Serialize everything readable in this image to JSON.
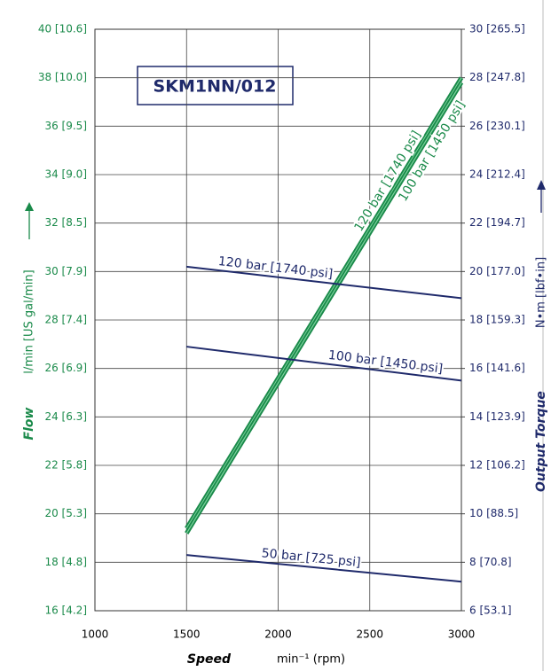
{
  "chart_data": {
    "type": "line",
    "title": "SKM1NN/012",
    "x_label": "Speed",
    "x_unit": "min⁻¹ (rpm)",
    "y_label": "Flow",
    "y_unit": "l/min   [US gal/min]",
    "y2_label": "Output Torque",
    "y2_unit": "N•m   [lbf•in]",
    "x": [
      1500,
      3000
    ],
    "xlim": [
      1000,
      3000
    ],
    "xticks": [
      1000,
      1500,
      2000,
      2500,
      3000
    ],
    "ylim": [
      16,
      40
    ],
    "yticks": [
      {
        "value": 16,
        "label": "16 [4.2]"
      },
      {
        "value": 18,
        "label": "18 [4.8]"
      },
      {
        "value": 20,
        "label": "20 [5.3]"
      },
      {
        "value": 22,
        "label": "22 [5.8]"
      },
      {
        "value": 24,
        "label": "24 [6.3]"
      },
      {
        "value": 26,
        "label": "26 [6.9]"
      },
      {
        "value": 28,
        "label": "28 [7.4]"
      },
      {
        "value": 30,
        "label": "30 [7.9]"
      },
      {
        "value": 32,
        "label": "32 [8.5]"
      },
      {
        "value": 34,
        "label": "34 [9.0]"
      },
      {
        "value": 36,
        "label": "36 [9.5]"
      },
      {
        "value": 38,
        "label": "38 [10.0]"
      },
      {
        "value": 40,
        "label": "40 [10.6]"
      }
    ],
    "y2lim": [
      6,
      30
    ],
    "y2ticks": [
      {
        "value": 6,
        "label": "6 [53.1]"
      },
      {
        "value": 8,
        "label": "8 [70.8]"
      },
      {
        "value": 10,
        "label": "10 [88.5]"
      },
      {
        "value": 12,
        "label": "12 [106.2]"
      },
      {
        "value": 14,
        "label": "14 [123.9]"
      },
      {
        "value": 16,
        "label": "16 [141.6]"
      },
      {
        "value": 18,
        "label": "18 [159.3]"
      },
      {
        "value": 20,
        "label": "20 [177.0]"
      },
      {
        "value": 22,
        "label": "22 [194.7]"
      },
      {
        "value": 24,
        "label": "24 [212.4]"
      },
      {
        "value": 26,
        "label": "26 [230.1]"
      },
      {
        "value": 28,
        "label": "28 [247.8]"
      },
      {
        "value": 30,
        "label": "30 [265.5]"
      }
    ],
    "grid": true,
    "series": [
      {
        "name": "120 bar [1740 psi]",
        "color": "#1a8a4a",
        "values": [
          19.4,
          38.0
        ]
      },
      {
        "name": "100 bar [1450 psi]",
        "color": "#1a8a4a",
        "values": [
          19.2,
          37.8
        ]
      },
      {
        "name": "120 bar [1740 psi]",
        "color": "#1f2a6b",
        "axis": "y2",
        "values": [
          20.2,
          18.9
        ]
      },
      {
        "name": "100 bar [1450 psi]",
        "color": "#1f2a6b",
        "axis": "y2",
        "values": [
          16.9,
          15.5
        ]
      },
      {
        "name": "50 bar [725 psi]",
        "color": "#1f2a6b",
        "axis": "y2",
        "values": [
          8.3,
          7.2
        ]
      }
    ]
  }
}
